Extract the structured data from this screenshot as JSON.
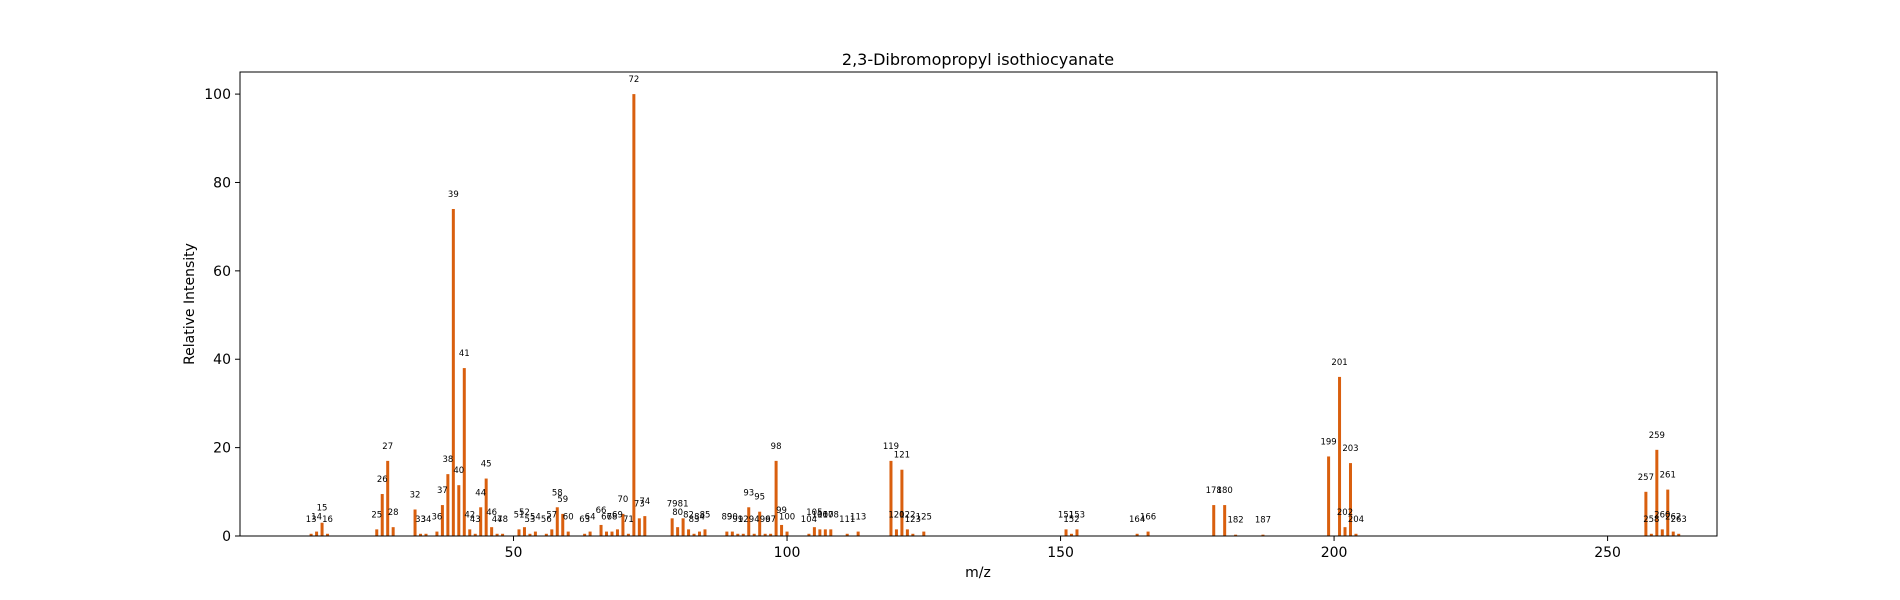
{
  "chart_data": {
    "type": "bar",
    "title": "2,3-Dibromopropyl isothiocyanate",
    "xlabel": "m/z",
    "ylabel": "Relative Intensity",
    "xlim": [
      0,
      270
    ],
    "ylim": [
      0,
      105
    ],
    "xticks": [
      50,
      100,
      150,
      200,
      250
    ],
    "yticks": [
      0,
      20,
      40,
      60,
      80,
      100
    ],
    "bar_color": "#d95f0e",
    "grid": false,
    "legend": "none",
    "x": [
      13,
      14,
      15,
      16,
      25,
      26,
      27,
      28,
      32,
      33,
      34,
      36,
      37,
      38,
      39,
      40,
      41,
      42,
      43,
      44,
      45,
      46,
      47,
      48,
      51,
      52,
      53,
      54,
      56,
      57,
      58,
      59,
      60,
      63,
      64,
      66,
      67,
      68,
      69,
      70,
      71,
      72,
      73,
      74,
      79,
      80,
      81,
      82,
      83,
      84,
      85,
      89,
      90,
      91,
      92,
      93,
      94,
      95,
      96,
      97,
      98,
      99,
      100,
      104,
      105,
      106,
      107,
      108,
      111,
      113,
      119,
      120,
      121,
      122,
      123,
      125,
      151,
      152,
      153,
      164,
      166,
      178,
      180,
      182,
      187,
      199,
      201,
      202,
      203,
      204,
      257,
      258,
      259,
      260,
      261,
      262,
      263
    ],
    "values": [
      0.5,
      1.0,
      3.0,
      0.5,
      1.5,
      9.5,
      17.0,
      2.0,
      6.0,
      0.5,
      0.5,
      1.0,
      7.0,
      14.0,
      74.0,
      11.5,
      38.0,
      1.5,
      0.5,
      6.5,
      13.0,
      2.0,
      0.5,
      0.5,
      1.5,
      2.0,
      0.5,
      1.0,
      0.5,
      1.5,
      6.5,
      5.0,
      1.0,
      0.5,
      1.0,
      2.5,
      1.0,
      1.0,
      1.5,
      5.0,
      0.5,
      100.0,
      4.0,
      4.5,
      4.0,
      2.0,
      4.0,
      1.5,
      0.5,
      1.0,
      1.5,
      1.0,
      1.0,
      0.5,
      0.5,
      6.5,
      0.5,
      5.5,
      0.5,
      0.5,
      17.0,
      2.5,
      1.0,
      0.5,
      2.0,
      1.5,
      1.5,
      1.5,
      0.5,
      1.0,
      17.0,
      1.5,
      15.0,
      1.5,
      0.5,
      1.0,
      1.5,
      0.5,
      1.5,
      0.5,
      1.0,
      7.0,
      7.0,
      0.3,
      0.3,
      18.0,
      36.0,
      2.0,
      16.5,
      0.5,
      10.0,
      0.5,
      19.5,
      1.5,
      10.5,
      1.0,
      0.5
    ]
  }
}
